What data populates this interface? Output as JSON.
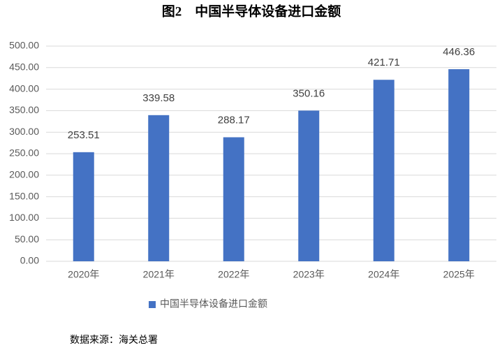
{
  "chart_data": {
    "type": "bar",
    "title": "图2　中国半导体设备进口金额",
    "categories": [
      "2020年",
      "2021年",
      "2022年",
      "2023年",
      "2024年",
      "2025年"
    ],
    "series": [
      {
        "name": "中国半导体设备进口金额",
        "color": "#4472c4",
        "values": [
          253.51,
          339.58,
          288.17,
          350.16,
          421.71,
          446.36
        ]
      }
    ],
    "ylim": [
      0,
      500
    ],
    "yticks": [
      {
        "value": 0,
        "label": "0.00"
      },
      {
        "value": 50,
        "label": "50.00"
      },
      {
        "value": 100,
        "label": "100.00"
      },
      {
        "value": 150,
        "label": "150.00"
      },
      {
        "value": 200,
        "label": "200.00"
      },
      {
        "value": 250,
        "label": "250.00"
      },
      {
        "value": 300,
        "label": "300.00"
      },
      {
        "value": 350,
        "label": "350.00"
      },
      {
        "value": 400,
        "label": "400.00"
      },
      {
        "value": 450,
        "label": "450.00"
      },
      {
        "value": 500,
        "label": "500.00"
      }
    ],
    "grid": true,
    "legend": "bottom",
    "source": "数据来源：海关总署"
  }
}
